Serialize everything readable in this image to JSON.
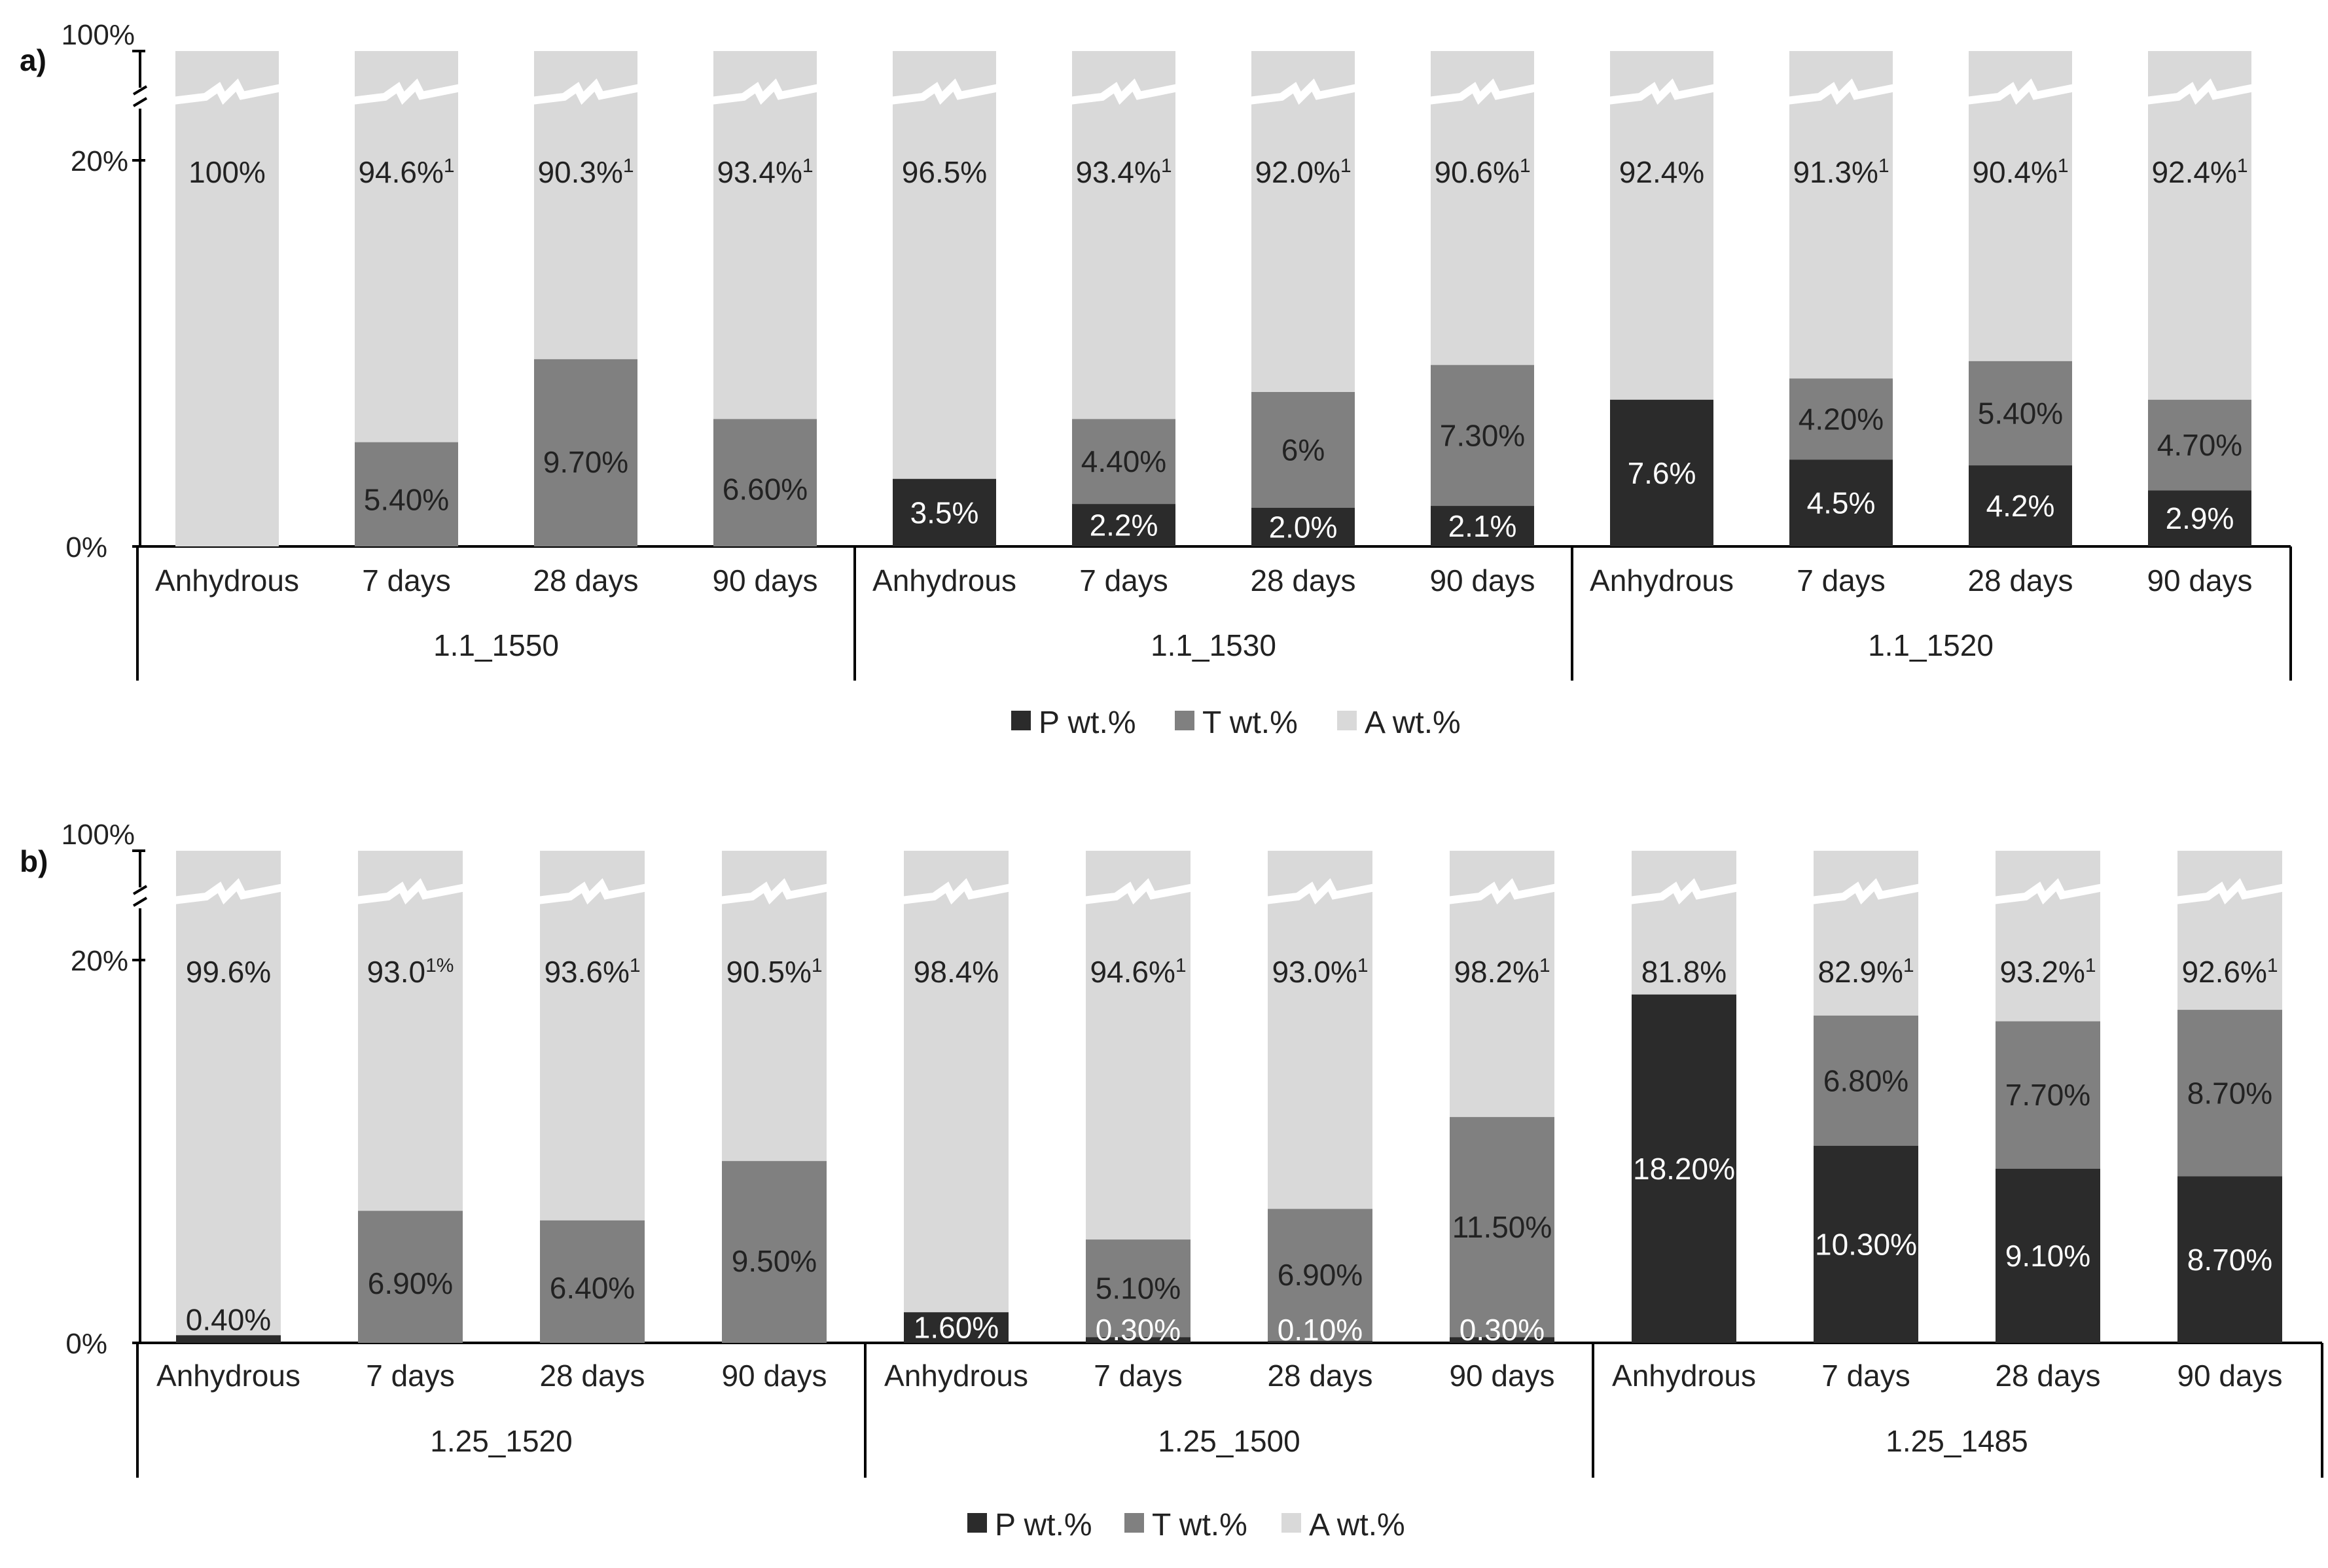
{
  "colors": {
    "P": "#2b2b2b",
    "T": "#808080",
    "A": "#d9d9d9"
  },
  "chart_data": [
    {
      "type": "bar",
      "stacked": true,
      "panel_label": "a)",
      "y_tick_labels": [
        "100%",
        "20%",
        "0%"
      ],
      "axis_break": true,
      "ylim": [
        0,
        100
      ],
      "legend": [
        "P  wt.%",
        "T wt.%",
        "A wt.%"
      ],
      "groups": [
        {
          "name": "1.1_1550",
          "bars": [
            {
              "category": "Anhydrous",
              "P": 0,
              "T": 0,
              "A": 100,
              "P_label": "",
              "T_label": "",
              "A_label": "100%",
              "A_sup": ""
            },
            {
              "category": "7 days",
              "P": 0,
              "T": 5.4,
              "A": 94.6,
              "P_label": "",
              "T_label": "5.40%",
              "A_label": "94.6%",
              "A_sup": "1"
            },
            {
              "category": "28 days",
              "P": 0,
              "T": 9.7,
              "A": 90.3,
              "P_label": "",
              "T_label": "9.70%",
              "A_label": "90.3%",
              "A_sup": "1"
            },
            {
              "category": "90 days",
              "P": 0,
              "T": 6.6,
              "A": 93.4,
              "P_label": "",
              "T_label": "6.60%",
              "A_label": "93.4%",
              "A_sup": "1"
            }
          ]
        },
        {
          "name": "1.1_1530",
          "bars": [
            {
              "category": "Anhydrous",
              "P": 3.5,
              "T": 0,
              "A": 96.5,
              "P_label": "3.5%",
              "T_label": "",
              "A_label": "96.5%",
              "A_sup": ""
            },
            {
              "category": "7 days",
              "P": 2.2,
              "T": 4.4,
              "A": 93.4,
              "P_label": "2.2%",
              "T_label": "4.40%",
              "A_label": "93.4%",
              "A_sup": "1"
            },
            {
              "category": "28 days",
              "P": 2.0,
              "T": 6.0,
              "A": 92.0,
              "P_label": "2.0%",
              "T_label": "6%",
              "A_label": "92.0%",
              "A_sup": "1"
            },
            {
              "category": "90 days",
              "P": 2.1,
              "T": 7.3,
              "A": 90.6,
              "P_label": "2.1%",
              "T_label": "7.30%",
              "A_label": "90.6%",
              "A_sup": "1"
            }
          ]
        },
        {
          "name": "1.1_1520",
          "bars": [
            {
              "category": "Anhydrous",
              "P": 7.6,
              "T": 0,
              "A": 92.4,
              "P_label": "7.6%",
              "T_label": "",
              "A_label": "92.4%",
              "A_sup": ""
            },
            {
              "category": "7 days",
              "P": 4.5,
              "T": 4.2,
              "A": 91.3,
              "P_label": "4.5%",
              "T_label": "4.20%",
              "A_label": "91.3%",
              "A_sup": "1"
            },
            {
              "category": "28 days",
              "P": 4.2,
              "T": 5.4,
              "A": 90.4,
              "P_label": "4.2%",
              "T_label": "5.40%",
              "A_label": "90.4%",
              "A_sup": "1"
            },
            {
              "category": "90 days",
              "P": 2.9,
              "T": 4.7,
              "A": 92.4,
              "P_label": "2.9%",
              "T_label": "4.70%",
              "A_label": "92.4%",
              "A_sup": "1"
            }
          ]
        }
      ]
    },
    {
      "type": "bar",
      "stacked": true,
      "panel_label": "b)",
      "y_tick_labels": [
        "100%",
        "20%",
        "0%"
      ],
      "axis_break": true,
      "ylim": [
        0,
        100
      ],
      "legend": [
        "P wt.%",
        "T wt.%",
        "A wt.%"
      ],
      "groups": [
        {
          "name": "1.25_1520",
          "bars": [
            {
              "category": "Anhydrous",
              "P": 0.4,
              "T": 0,
              "A": 99.6,
              "P_label": "0.40%",
              "T_label": "",
              "A_label": "99.6%",
              "A_sup": ""
            },
            {
              "category": "7 days",
              "P": 0,
              "T": 6.9,
              "A": 93.0,
              "P_label": "",
              "T_label": "6.90%",
              "A_label": "93.0",
              "A_sup": "1%"
            },
            {
              "category": "28 days",
              "P": 0,
              "T": 6.4,
              "A": 93.6,
              "P_label": "",
              "T_label": "6.40%",
              "A_label": "93.6%",
              "A_sup": "1"
            },
            {
              "category": "90 days",
              "P": 0,
              "T": 9.5,
              "A": 90.5,
              "P_label": "",
              "T_label": "9.50%",
              "A_label": "90.5%",
              "A_sup": "1"
            }
          ]
        },
        {
          "name": "1.25_1500",
          "bars": [
            {
              "category": "Anhydrous",
              "P": 1.6,
              "T": 0,
              "A": 98.4,
              "P_label": "1.60%",
              "T_label": "",
              "A_label": "98.4%",
              "A_sup": ""
            },
            {
              "category": "7 days",
              "P": 0.3,
              "T": 5.1,
              "A": 94.6,
              "P_label": "0.30%",
              "T_label": "5.10%",
              "A_label": "94.6%",
              "A_sup": "1"
            },
            {
              "category": "28 days",
              "P": 0.1,
              "T": 6.9,
              "A": 93.0,
              "P_label": "0.10%",
              "T_label": "6.90%",
              "A_label": "93.0%",
              "A_sup": "1"
            },
            {
              "category": "90 days",
              "P": 0.3,
              "T": 11.5,
              "A": 98.2,
              "P_label": "0.30%",
              "T_label": "11.50%",
              "A_label": "98.2%",
              "A_sup": "1"
            }
          ]
        },
        {
          "name": "1.25_1485",
          "bars": [
            {
              "category": "Anhydrous",
              "P": 18.2,
              "T": 0,
              "A": 81.8,
              "P_label": "18.20%",
              "T_label": "",
              "A_label": "81.8%",
              "A_sup": ""
            },
            {
              "category": "7 days",
              "P": 10.3,
              "T": 6.8,
              "A": 82.9,
              "P_label": "10.30%",
              "T_label": "6.80%",
              "A_label": "82.9%",
              "A_sup": "1"
            },
            {
              "category": "28 days",
              "P": 9.1,
              "T": 7.7,
              "A": 93.2,
              "P_label": "9.10%",
              "T_label": "7.70%",
              "A_label": "93.2%",
              "A_sup": "1"
            },
            {
              "category": "90 days",
              "P": 8.7,
              "T": 8.7,
              "A": 92.6,
              "P_label": "8.70%",
              "T_label": "8.70%",
              "A_label": "92.6%",
              "A_sup": "1"
            }
          ]
        }
      ]
    }
  ]
}
